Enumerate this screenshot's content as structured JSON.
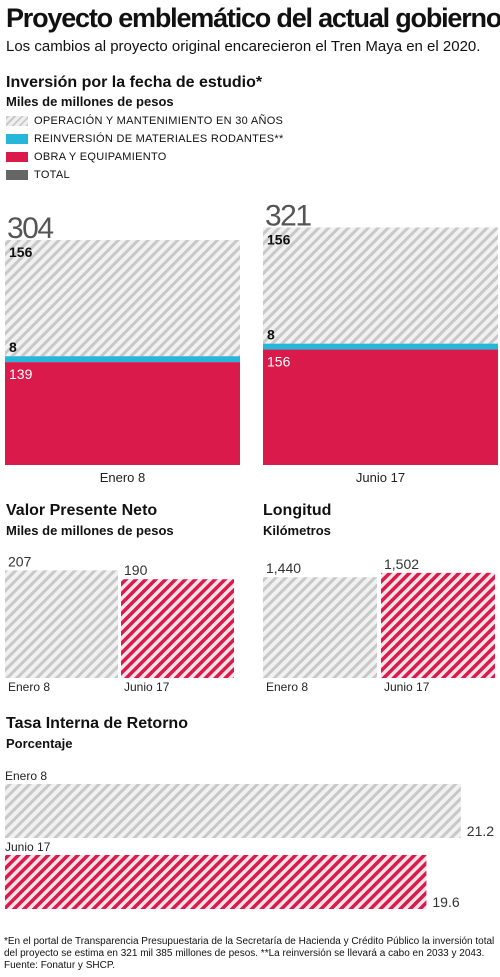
{
  "title": "Proyecto emblemático del actual gobierno",
  "subtitle": "Los cambios al proyecto original encarecieron el Tren Maya en el 2020.",
  "colors": {
    "operacion": "#d4d4d4",
    "reinversion": "#27b5da",
    "obra": "#d91a4b",
    "total": "#666666"
  },
  "footnote": "*En el portal de Transparencia Presupuestaria de la Secretaría de Hacienda y Crédito Público la inversión total del proyecto se estima en 321 mil 385 millones de pesos. **La reinversión se llevará a cabo en 2033 y 2043. Fuente: Fonatur y SHCP.",
  "chart_data": [
    {
      "type": "bar",
      "stacked": true,
      "title": "Inversión por la fecha de estudio*",
      "subtitle": "Miles de millones de pesos",
      "legend_position": "top-left",
      "legend": [
        "OPERACIÓN Y MANTENIMIENTO EN 30 AÑOS",
        "REINVERSIÓN DE MATERIALES RODANTES**",
        "OBRA Y EQUIPAMIENTO",
        "TOTAL"
      ],
      "categories": [
        "Enero 8",
        "Junio 17"
      ],
      "totals": [
        304,
        321
      ],
      "total_labels": [
        "304",
        "321"
      ],
      "series": [
        {
          "name": "OBRA Y EQUIPAMIENTO",
          "values": [
            139,
            156
          ],
          "labels": [
            "139",
            "156"
          ]
        },
        {
          "name": "REINVERSIÓN DE MATERIALES RODANTES**",
          "values": [
            8,
            8
          ],
          "labels": [
            "8",
            "8"
          ]
        },
        {
          "name": "OPERACIÓN Y MANTENIMIENTO EN 30 AÑOS",
          "values": [
            156,
            156
          ],
          "labels": [
            "156",
            "156"
          ]
        }
      ]
    },
    {
      "type": "bar",
      "title": "Valor Presente Neto",
      "subtitle": "Miles de millones de pesos",
      "categories": [
        "Enero 8",
        "Junio 17"
      ],
      "values": [
        207,
        190
      ],
      "labels": [
        "207",
        "190"
      ]
    },
    {
      "type": "bar",
      "title": "Longitud",
      "subtitle": "Kilómetros",
      "categories": [
        "Enero 8",
        "Junio 17"
      ],
      "values": [
        1440,
        1502
      ],
      "labels": [
        "1,440",
        "1,502"
      ]
    },
    {
      "type": "bar",
      "orientation": "horizontal",
      "title": "Tasa Interna de Retorno",
      "subtitle": "Porcentaje",
      "categories": [
        "Enero 8",
        "Junio 17"
      ],
      "values": [
        21.2,
        19.6
      ],
      "labels": [
        "21.2",
        "19.6"
      ]
    }
  ]
}
